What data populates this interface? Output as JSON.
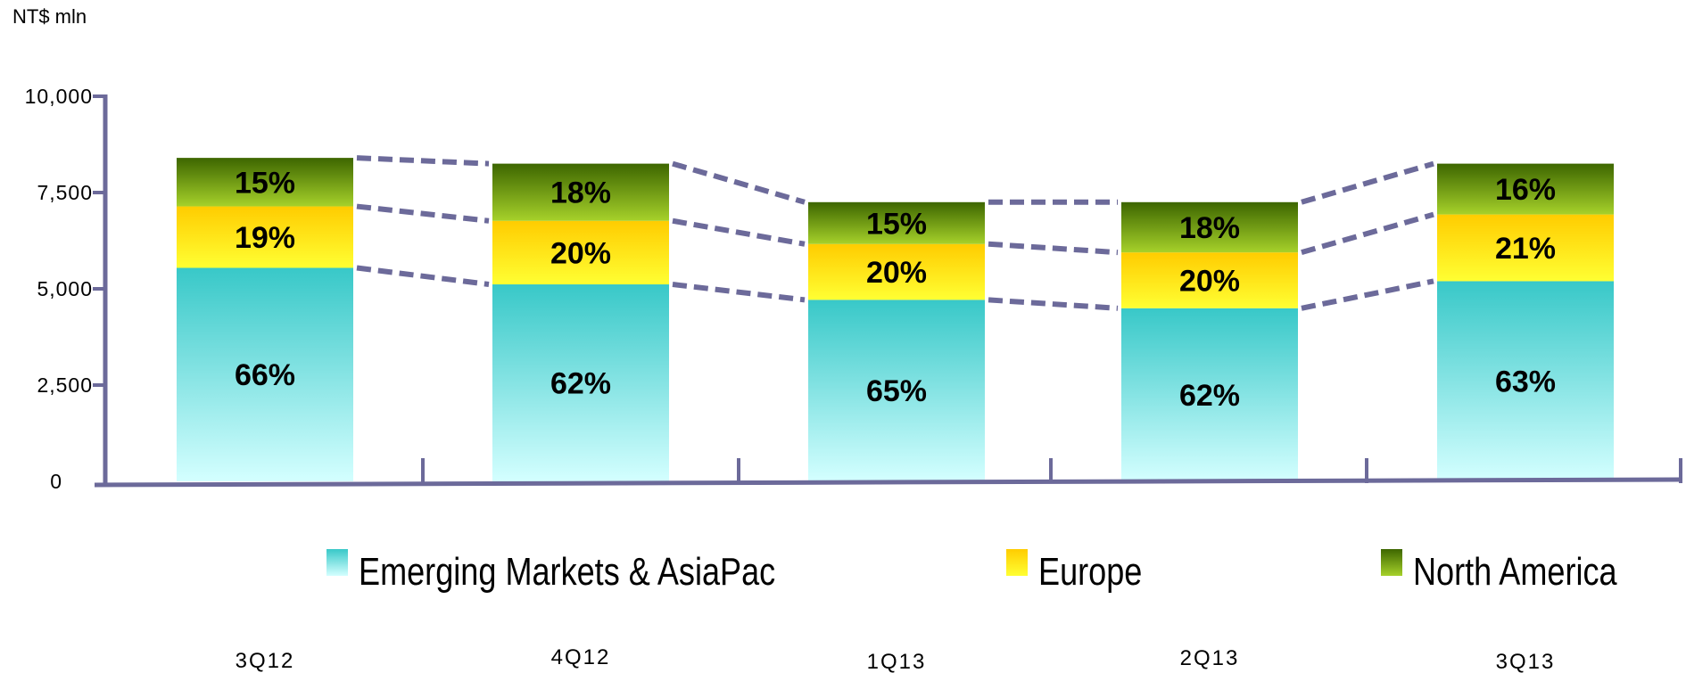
{
  "unit_label": "NT$ mln",
  "chart_data": {
    "type": "bar",
    "stacked": true,
    "categories": [
      "3Q12",
      "4Q12",
      "1Q13",
      "2Q13",
      "3Q13"
    ],
    "totals": [
      8400,
      8250,
      7250,
      7250,
      8250
    ],
    "series": [
      {
        "name": "Emerging Markets & AsiaPac",
        "percent_labels": [
          "66%",
          "62%",
          "65%",
          "62%",
          "63%"
        ],
        "values": [
          5544,
          5115,
          4713,
          4495,
          5198
        ],
        "color_top": "#38c8c8",
        "color_bottom": "#d4ffff"
      },
      {
        "name": "Europe",
        "percent_labels": [
          "19%",
          "20%",
          "20%",
          "20%",
          "21%"
        ],
        "values": [
          1596,
          1650,
          1450,
          1450,
          1732
        ],
        "color_top": "#ffcc00",
        "color_bottom": "#ffff33"
      },
      {
        "name": "North America",
        "percent_labels": [
          "15%",
          "18%",
          "15%",
          "18%",
          "16%"
        ],
        "values": [
          1260,
          1485,
          1087,
          1305,
          1320
        ],
        "color_top": "#3d6600",
        "color_bottom": "#a6d12a"
      }
    ],
    "yticks": [
      "0",
      "2,500",
      "5,000",
      "7,500",
      "10,000"
    ],
    "ylim": [
      0,
      10000
    ],
    "grid": false,
    "connector_lines": "dashed",
    "legend_position": "bottom"
  }
}
